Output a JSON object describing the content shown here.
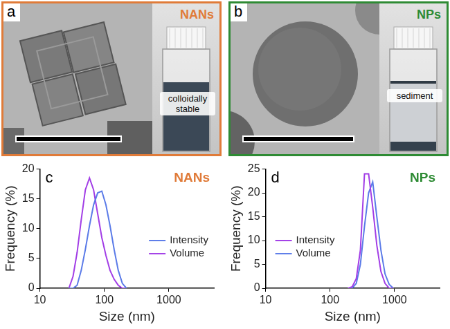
{
  "panels": [
    {
      "panel_label": "a",
      "title": "NANs",
      "caption": "colloidally stable",
      "color": "#e07b39"
    },
    {
      "panel_label": "b",
      "title": "NPs",
      "caption": "sediment",
      "color": "#2e8b34"
    }
  ],
  "chart_data": [
    {
      "type": "line",
      "panel_label": "c",
      "title": "NANs",
      "color": "#e07b39",
      "x_label": "Size (nm)",
      "y_label": "Frequency (%)",
      "log": "x",
      "grid": false,
      "legend": "right",
      "xlim": [
        10,
        5000
      ],
      "xticks": [
        10,
        100,
        1000
      ],
      "ylim": [
        0,
        20
      ],
      "yticks": [
        0,
        5,
        10,
        15,
        20
      ],
      "x": [
        28.2,
        32.7,
        37.8,
        43.8,
        50.7,
        58.8,
        68.1,
        78.8,
        91.3,
        105.7,
        122.4,
        141.8,
        164.2,
        190.1,
        220.2
      ],
      "series": [
        {
          "name": "Intensity",
          "color": "#5b7be8",
          "values": [
            0,
            0,
            0.5,
            3,
            6.5,
            10.5,
            14,
            16,
            16.3,
            14,
            10.5,
            6.5,
            3,
            0.8,
            0
          ]
        },
        {
          "name": "Volume",
          "color": "#a23ee6",
          "values": [
            0,
            2,
            6,
            11.5,
            16.5,
            18.5,
            16.5,
            12.5,
            8.5,
            5.5,
            3,
            1.5,
            0.5,
            0,
            0
          ]
        }
      ]
    },
    {
      "type": "line",
      "panel_label": "d",
      "title": "NPs",
      "color": "#2e8b34",
      "x_label": "Size (nm)",
      "y_label": "Frequency (%)",
      "log": "x",
      "grid": false,
      "legend": "left",
      "xlim": [
        10,
        5000
      ],
      "xticks": [
        10,
        100,
        1000
      ],
      "ylim": [
        0,
        25
      ],
      "yticks": [
        0,
        5,
        10,
        15,
        20,
        25
      ],
      "x": [
        190.1,
        220.2,
        255,
        295.3,
        342,
        396.1,
        458.7,
        531.2,
        615.1,
        712.4,
        825,
        955.4
      ],
      "series": [
        {
          "name": "Intensity",
          "color": "#a23ee6",
          "values": [
            0,
            0.3,
            2,
            8,
            24,
            24,
            17,
            9,
            3.5,
            1,
            0,
            0
          ]
        },
        {
          "name": "Volume",
          "color": "#5b7be8",
          "values": [
            0,
            0,
            1,
            5,
            13,
            20,
            22.3,
            15,
            8,
            3,
            0.8,
            0
          ]
        }
      ]
    }
  ]
}
